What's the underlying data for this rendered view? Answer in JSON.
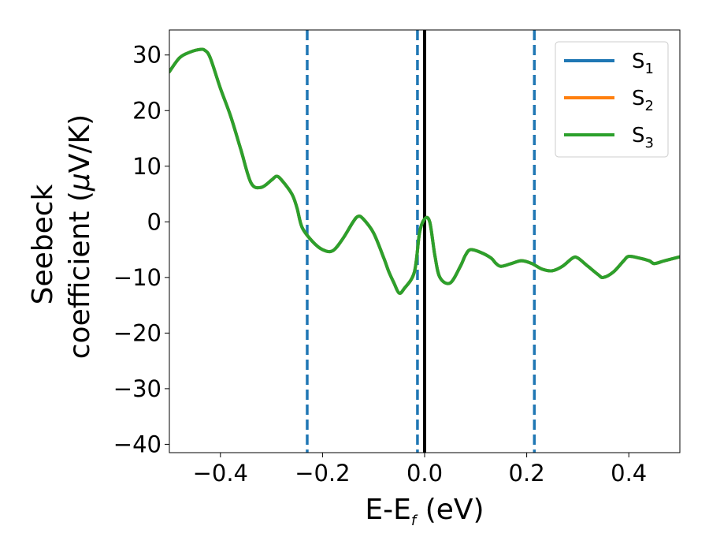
{
  "chart_data": {
    "type": "line",
    "xlabel": {
      "main": "E-E",
      "sub": "f",
      "unit": " (eV)"
    },
    "ylabel": {
      "line1": "Seebeck",
      "line2_pre": "coefficient  (",
      "mu": "μ",
      "line2_post": "V/K)"
    },
    "xlim": [
      -0.5,
      0.5
    ],
    "ylim": [
      -41.5,
      34.5
    ],
    "xticks": [
      -0.4,
      -0.2,
      0.0,
      0.2,
      0.4
    ],
    "xtick_labels": [
      "−0.4",
      "−0.2",
      "0.0",
      "0.2",
      "0.4"
    ],
    "yticks": [
      30,
      20,
      10,
      0,
      -10,
      -20,
      -30,
      -40
    ],
    "ytick_labels": [
      "30",
      "20",
      "10",
      "0",
      "−10",
      "−20",
      "−30",
      "−40"
    ],
    "grid": false,
    "legend_position": "top-right",
    "series": [
      {
        "name": "S",
        "sub": "1",
        "color": "#1f77b4",
        "x": [
          -0.5,
          -0.48,
          -0.46,
          -0.44,
          -0.43,
          -0.42,
          -0.4,
          -0.38,
          -0.36,
          -0.34,
          -0.32,
          -0.3,
          -0.29,
          -0.28,
          -0.26,
          -0.25,
          -0.24,
          -0.22,
          -0.2,
          -0.18,
          -0.16,
          -0.14,
          -0.13,
          -0.12,
          -0.1,
          -0.08,
          -0.07,
          -0.06,
          -0.05,
          -0.04,
          -0.02,
          -0.01,
          0.0,
          0.01,
          0.02,
          0.03,
          0.05,
          0.07,
          0.08,
          0.09,
          0.11,
          0.13,
          0.14,
          0.15,
          0.17,
          0.19,
          0.21,
          0.23,
          0.25,
          0.27,
          0.29,
          0.3,
          0.32,
          0.34,
          0.35,
          0.37,
          0.39,
          0.4,
          0.42,
          0.44,
          0.45,
          0.47,
          0.5
        ],
        "y": [
          27,
          29.5,
          30.5,
          31,
          30.8,
          29.5,
          24,
          19,
          13,
          7,
          6.2,
          7.5,
          8.2,
          7.5,
          5,
          2.5,
          -1,
          -3.5,
          -5,
          -5.2,
          -3,
          0,
          1,
          0.5,
          -2,
          -6.5,
          -9,
          -11,
          -12.8,
          -12,
          -9,
          -2,
          0.5,
          0,
          -6,
          -10,
          -11,
          -8,
          -6,
          -5,
          -5.5,
          -6.5,
          -7.5,
          -8,
          -7.5,
          -7,
          -7.5,
          -8.5,
          -8.8,
          -8,
          -6.5,
          -6.5,
          -8,
          -9.5,
          -10,
          -9,
          -7,
          -6.2,
          -6.5,
          -7,
          -7.5,
          -7,
          -6.3
        ]
      },
      {
        "name": "S",
        "sub": "2",
        "color": "#ff7f0e",
        "x": [
          -0.5,
          -0.48,
          -0.46,
          -0.44,
          -0.43,
          -0.42,
          -0.4,
          -0.38,
          -0.36,
          -0.34,
          -0.32,
          -0.3,
          -0.29,
          -0.28,
          -0.26,
          -0.25,
          -0.24,
          -0.22,
          -0.2,
          -0.18,
          -0.16,
          -0.14,
          -0.13,
          -0.12,
          -0.1,
          -0.08,
          -0.07,
          -0.06,
          -0.05,
          -0.04,
          -0.02,
          -0.01,
          0.0,
          0.01,
          0.02,
          0.03,
          0.05,
          0.07,
          0.08,
          0.09,
          0.11,
          0.13,
          0.14,
          0.15,
          0.17,
          0.19,
          0.21,
          0.23,
          0.25,
          0.27,
          0.29,
          0.3,
          0.32,
          0.34,
          0.35,
          0.37,
          0.39,
          0.4,
          0.42,
          0.44,
          0.45,
          0.47,
          0.5
        ],
        "y": [
          27,
          29.5,
          30.5,
          31,
          30.8,
          29.5,
          24,
          19,
          13,
          7,
          6.2,
          7.5,
          8.2,
          7.5,
          5,
          2.5,
          -1,
          -3.5,
          -5,
          -5.2,
          -3,
          0,
          1,
          0.5,
          -2,
          -6.5,
          -9,
          -11,
          -12.8,
          -12,
          -9,
          -2,
          0.5,
          0,
          -6,
          -10,
          -11,
          -8,
          -6,
          -5,
          -5.5,
          -6.5,
          -7.5,
          -8,
          -7.5,
          -7,
          -7.5,
          -8.5,
          -8.8,
          -8,
          -6.5,
          -6.5,
          -8,
          -9.5,
          -10,
          -9,
          -7,
          -6.2,
          -6.5,
          -7,
          -7.5,
          -7,
          -6.3
        ]
      },
      {
        "name": "S",
        "sub": "3",
        "color": "#2ca02c",
        "x": [
          -0.5,
          -0.48,
          -0.46,
          -0.44,
          -0.43,
          -0.42,
          -0.4,
          -0.38,
          -0.36,
          -0.34,
          -0.32,
          -0.3,
          -0.29,
          -0.28,
          -0.26,
          -0.25,
          -0.24,
          -0.22,
          -0.2,
          -0.18,
          -0.16,
          -0.14,
          -0.13,
          -0.12,
          -0.1,
          -0.08,
          -0.07,
          -0.06,
          -0.05,
          -0.04,
          -0.02,
          -0.01,
          0.0,
          0.01,
          0.02,
          0.03,
          0.05,
          0.07,
          0.08,
          0.09,
          0.11,
          0.13,
          0.14,
          0.15,
          0.17,
          0.19,
          0.21,
          0.23,
          0.25,
          0.27,
          0.29,
          0.3,
          0.32,
          0.34,
          0.35,
          0.37,
          0.39,
          0.4,
          0.42,
          0.44,
          0.45,
          0.47,
          0.5
        ],
        "y": [
          27,
          29.5,
          30.5,
          31,
          30.8,
          29.5,
          24,
          19,
          13,
          7,
          6.2,
          7.5,
          8.2,
          7.5,
          5,
          2.5,
          -1,
          -3.5,
          -5,
          -5.2,
          -3,
          0,
          1,
          0.5,
          -2,
          -6.5,
          -9,
          -11,
          -12.8,
          -12,
          -9,
          -2,
          0.5,
          0,
          -6,
          -10,
          -11,
          -8,
          -6,
          -5,
          -5.5,
          -6.5,
          -7.5,
          -8,
          -7.5,
          -7,
          -7.5,
          -8.5,
          -8.8,
          -8,
          -6.5,
          -6.5,
          -8,
          -9.5,
          -10,
          -9,
          -7,
          -6.2,
          -6.5,
          -7,
          -7.5,
          -7,
          -6.3
        ]
      }
    ],
    "vlines": [
      {
        "x": -0.23,
        "style": "dashed",
        "color": "#1f77b4"
      },
      {
        "x": -0.014,
        "style": "dashed",
        "color": "#1f77b4"
      },
      {
        "x": 0.0,
        "style": "solid",
        "color": "#000000"
      },
      {
        "x": 0.215,
        "style": "dashed",
        "color": "#1f77b4"
      }
    ]
  }
}
